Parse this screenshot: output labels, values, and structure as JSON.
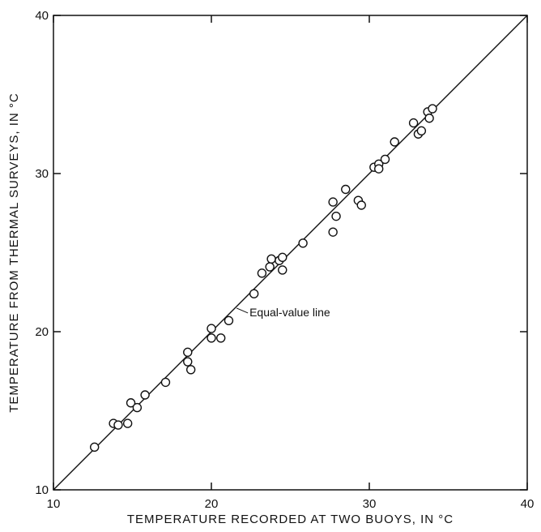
{
  "chart_data": {
    "type": "scatter",
    "xlabel": "TEMPERATURE RECORDED AT TWO BUOYS, IN °C",
    "ylabel": "TEMPERATURE FROM THERMAL SURVEYS, IN °C",
    "xlim": [
      10,
      40
    ],
    "ylim": [
      10,
      40
    ],
    "xticks": [
      10,
      20,
      30,
      40
    ],
    "yticks": [
      10,
      20,
      30,
      40
    ],
    "grid": false,
    "annotation": "Equal-value line",
    "reference_line": {
      "x": [
        10,
        40
      ],
      "y": [
        10,
        40
      ]
    },
    "points": [
      [
        12.6,
        12.7
      ],
      [
        13.8,
        14.2
      ],
      [
        14.1,
        14.1
      ],
      [
        14.7,
        14.2
      ],
      [
        14.9,
        15.5
      ],
      [
        15.3,
        15.2
      ],
      [
        15.8,
        16.0
      ],
      [
        17.1,
        16.8
      ],
      [
        18.5,
        18.7
      ],
      [
        18.5,
        18.1
      ],
      [
        18.7,
        17.6
      ],
      [
        20.0,
        20.2
      ],
      [
        20.0,
        19.6
      ],
      [
        20.6,
        19.6
      ],
      [
        21.1,
        20.7
      ],
      [
        22.7,
        22.4
      ],
      [
        23.2,
        23.7
      ],
      [
        23.7,
        24.1
      ],
      [
        23.8,
        24.6
      ],
      [
        24.3,
        24.5
      ],
      [
        24.5,
        24.7
      ],
      [
        24.5,
        23.9
      ],
      [
        25.8,
        25.6
      ],
      [
        27.7,
        28.2
      ],
      [
        27.7,
        26.3
      ],
      [
        27.9,
        27.3
      ],
      [
        28.5,
        29.0
      ],
      [
        29.3,
        28.3
      ],
      [
        29.5,
        28.0
      ],
      [
        30.3,
        30.4
      ],
      [
        30.6,
        30.6
      ],
      [
        30.6,
        30.3
      ],
      [
        31.0,
        30.9
      ],
      [
        31.6,
        32.0
      ],
      [
        32.8,
        33.2
      ],
      [
        33.1,
        32.5
      ],
      [
        33.3,
        32.7
      ],
      [
        33.7,
        33.9
      ],
      [
        33.8,
        33.5
      ],
      [
        34.0,
        34.1
      ]
    ]
  }
}
